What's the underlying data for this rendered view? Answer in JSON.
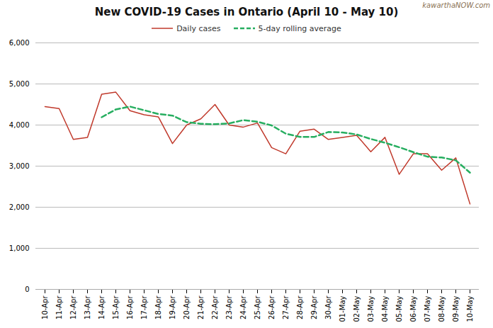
{
  "chart_data": {
    "type": "line",
    "title": "New COVID-19 Cases in Ontario (April 10 - May 10)",
    "annotations": [
      {
        "text": "kawarthaNOW.com",
        "color": "#8B7355"
      }
    ],
    "categories": [
      "10-Apr",
      "11-Apr",
      "12-Apr",
      "13-Apr",
      "14-Apr",
      "15-Apr",
      "16-Apr",
      "17-Apr",
      "18-Apr",
      "19-Apr",
      "20-Apr",
      "21-Apr",
      "22-Apr",
      "23-Apr",
      "24-Apr",
      "25-Apr",
      "26-Apr",
      "27-Apr",
      "28-Apr",
      "29-Apr",
      "30-Apr",
      "01-May",
      "02-May",
      "03-May",
      "04-May",
      "05-May",
      "06-May",
      "07-May",
      "08-May",
      "09-May",
      "10-May"
    ],
    "series": [
      {
        "name": "Daily cases",
        "color": "#c0392b",
        "line_style": "solid",
        "values": [
          4450,
          4400,
          3650,
          3700,
          4750,
          4800,
          4350,
          4250,
          4200,
          3550,
          4000,
          4150,
          4500,
          4000,
          3950,
          4050,
          3450,
          3300,
          3850,
          3900,
          3650,
          3700,
          3750,
          3350,
          3700,
          2800,
          3300,
          3300,
          2900,
          3200,
          2080
        ]
      },
      {
        "name": "5-day rolling average",
        "color": "#27ae60",
        "line_style": "dashed",
        "values": [
          null,
          null,
          null,
          null,
          4190,
          4380,
          4450,
          4360,
          4270,
          4230,
          4070,
          4030,
          4020,
          4040,
          4120,
          4080,
          3990,
          3790,
          3710,
          3710,
          3830,
          3820,
          3770,
          3660,
          3570,
          3460,
          3340,
          3230,
          3210,
          3140,
          2840
        ]
      }
    ],
    "ylim": [
      0,
      6000
    ],
    "yticks": [
      0,
      {
        "value": 1000,
        "label": "1,000"
      },
      {
        "value": 2000,
        "label": "2,000"
      },
      {
        "value": 3000,
        "label": "3,000"
      },
      {
        "value": 4000,
        "label": "4,000"
      },
      {
        "value": 5000,
        "label": "5,000"
      },
      {
        "value": 6000,
        "label": "6,000"
      }
    ],
    "grid": true,
    "legend": "top"
  }
}
